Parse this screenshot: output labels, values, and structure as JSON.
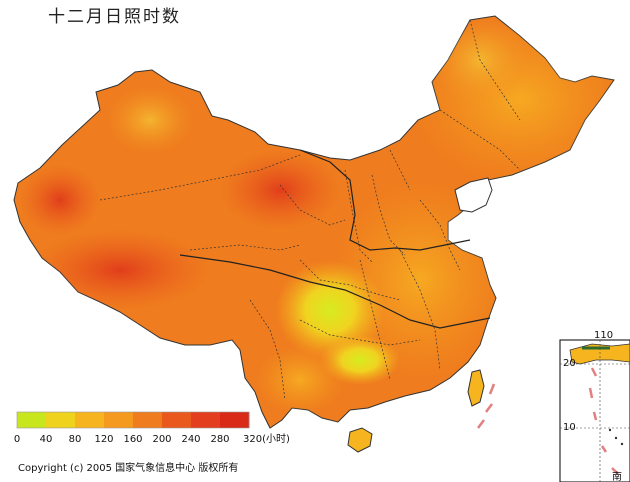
{
  "title": "十二月日照时数",
  "legend": {
    "colors": [
      "#c8e61e",
      "#eed21e",
      "#f6b41e",
      "#f49a1e",
      "#ef7c1e",
      "#e9591e",
      "#e33e1e",
      "#d92a18"
    ],
    "ticks": [
      "0",
      "40",
      "80",
      "120",
      "160",
      "200",
      "240",
      "280",
      "320(小时)"
    ]
  },
  "copyright": "Copyright (c) 2005 国家气象信息中心 版权所有",
  "inset": {
    "longitude_label": "110",
    "lat_labels": [
      "20",
      "10"
    ],
    "region_label": "南海"
  }
}
